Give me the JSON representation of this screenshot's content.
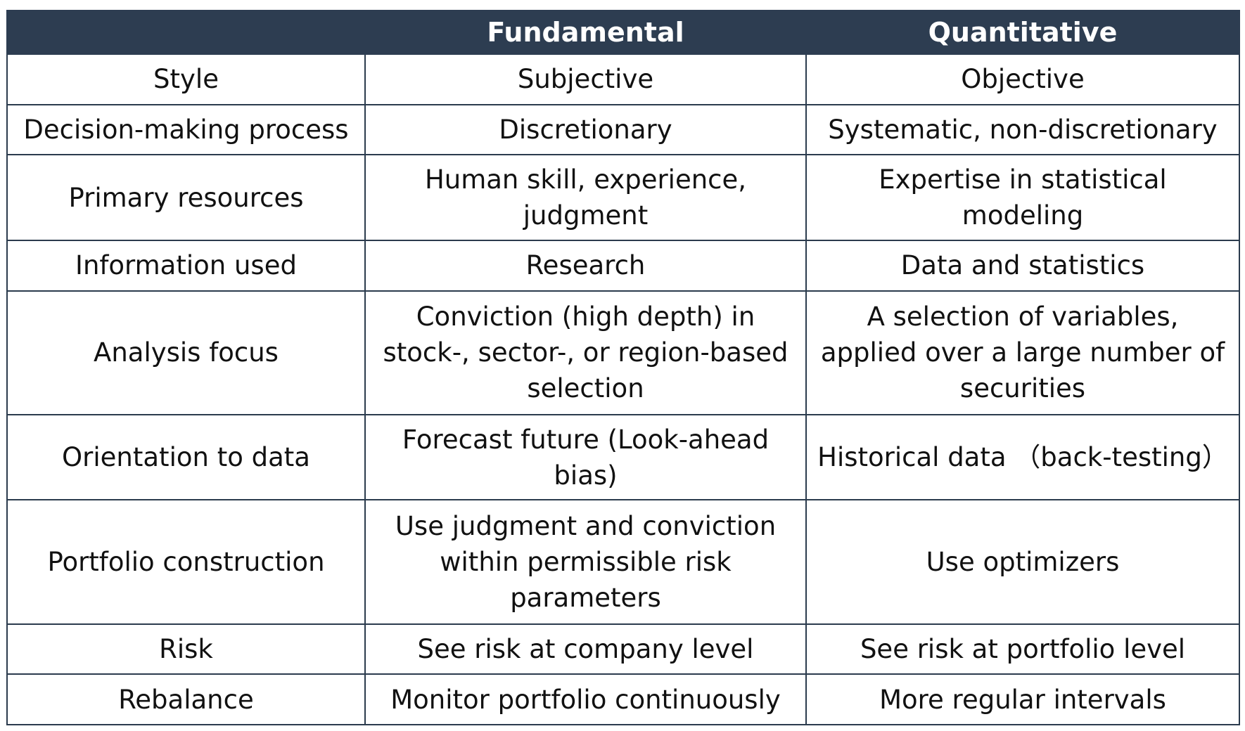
{
  "headers": {
    "label": "",
    "fundamental": "Fundamental",
    "quantitative": "Quantitative"
  },
  "rows": [
    {
      "label": "Style",
      "fundamental": "Subjective",
      "quantitative": "Objective"
    },
    {
      "label": "Decision-making process",
      "fundamental": "Discretionary",
      "quantitative": "Systematic, non-discretionary"
    },
    {
      "label": "Primary resources",
      "fundamental": "Human skill, experience, judgment",
      "quantitative": "Expertise in statistical modeling"
    },
    {
      "label": "Information used",
      "fundamental": "Research",
      "quantitative": "Data and statistics"
    },
    {
      "label": "Analysis focus",
      "fundamental": "Conviction (high depth) in stock-, sector-, or region-based selection",
      "quantitative": "A selection of variables, applied over a large number of securities"
    },
    {
      "label": "Orientation to data",
      "fundamental": "Forecast future (Look-ahead bias)",
      "quantitative": "Historical data （back-testing）"
    },
    {
      "label": "Portfolio construction",
      "fundamental": "Use judgment and conviction within permissible risk parameters",
      "quantitative": "Use optimizers"
    },
    {
      "label": "Risk",
      "fundamental": "See risk at company level",
      "quantitative": "See risk at portfolio level"
    },
    {
      "label": "Rebalance",
      "fundamental": "Monitor portfolio continuously",
      "quantitative": "More regular intervals"
    }
  ]
}
